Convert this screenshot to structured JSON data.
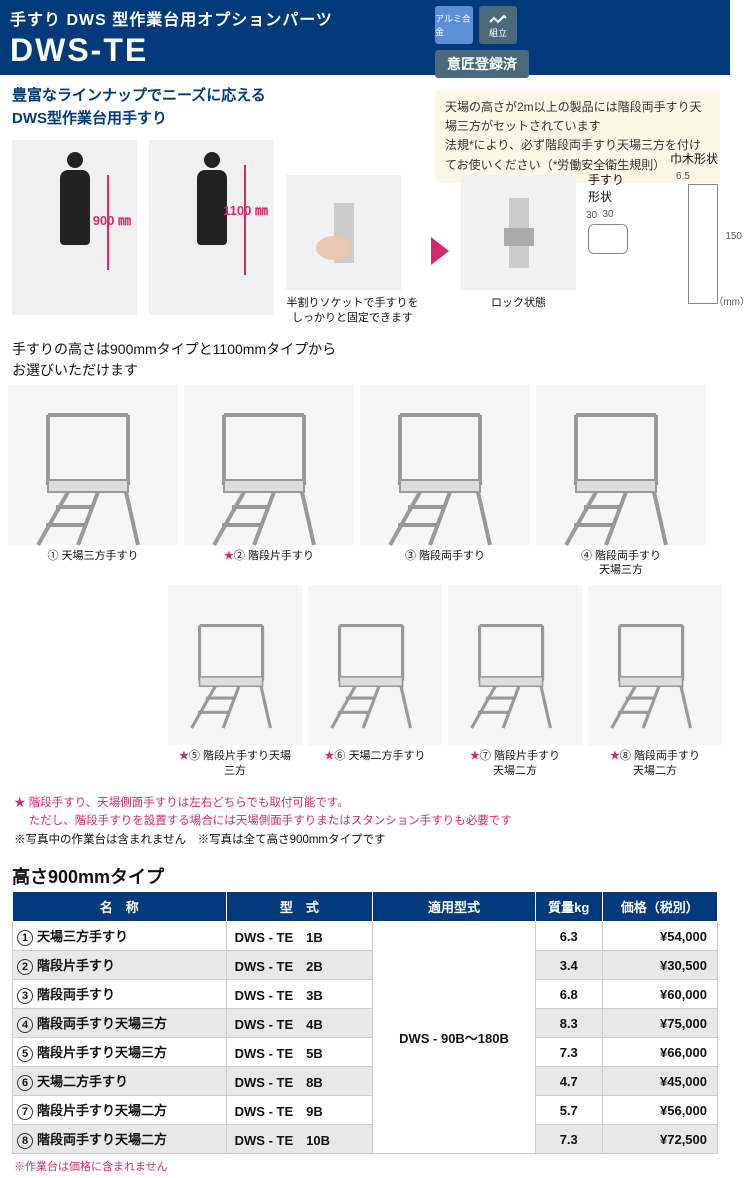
{
  "header": {
    "subtitle": "手すり DWS 型作業台用オプションパーツ",
    "title": "DWS-TE"
  },
  "badges": {
    "alumi": "アルミ合金",
    "kumitate": "組立",
    "isho": "意匠登録済"
  },
  "lead": {
    "line1": "豊富なラインナップでニーズに応える",
    "line2": "DWS型作業台用手すり"
  },
  "notice": "天場の高さが2m以上の製品には階段両手すり天場三方がセットされています\n法規*により、必ず階段両手すり天場三方を付けてお使いください（*労働安全衛生規則）",
  "photos": {
    "dim900": "900 ㎜",
    "dim1100": "1100 ㎜",
    "socket_caption": "半割りソケットで手すりをしっかりと固定できます",
    "lock_caption": "ロック状態"
  },
  "spec": {
    "habaki_label": "巾木形状",
    "habaki_w": "6.5",
    "habaki_h": "150",
    "tesuri_label": "手すり形状",
    "tesuri_w": "30",
    "tesuri_h": "30",
    "unit": "（mm）"
  },
  "selection_note": "手すりの高さは900mmタイプと1100mmタイプから\nお選びいただけます",
  "types": [
    {
      "num": "①",
      "star": false,
      "label": "天場三方手すり"
    },
    {
      "num": "②",
      "star": true,
      "label": "階段片手すり"
    },
    {
      "num": "③",
      "star": false,
      "label": "階段両手すり"
    },
    {
      "num": "④",
      "star": false,
      "label": "階段両手すり\n天場三方"
    },
    {
      "num": "⑤",
      "star": true,
      "label": "階段片手すり天場\n三方"
    },
    {
      "num": "⑥",
      "star": true,
      "label": "天場二方手すり"
    },
    {
      "num": "⑦",
      "star": true,
      "label": "階段片手すり\n天場二方"
    },
    {
      "num": "⑧",
      "star": true,
      "label": "階段両手すり\n天場二方"
    }
  ],
  "footnote": {
    "star_line": "★ 階段手すり、天場側面手すりは左右どちらでも取付可能です。\n　 ただし、階段手すりを設置する場合には天場側面手すりまたはスタンション手すりも必要です",
    "note1": "※写真中の作業台は含まれません",
    "note2": "※写真は全て高さ900mmタイプです"
  },
  "table": {
    "title": "高さ900mmタイプ",
    "headers": [
      "名　称",
      "型　式",
      "適用型式",
      "質量kg",
      "価格（税別）"
    ],
    "compat": "DWS - 90B～180B",
    "rows": [
      {
        "n": "①",
        "name": "天場三方手すり",
        "model": "DWS - TE　1B",
        "mass": "6.3",
        "price": "¥54,000"
      },
      {
        "n": "②",
        "name": "階段片手すり",
        "model": "DWS - TE　2B",
        "mass": "3.4",
        "price": "¥30,500"
      },
      {
        "n": "③",
        "name": "階段両手すり",
        "model": "DWS - TE　3B",
        "mass": "6.8",
        "price": "¥60,000"
      },
      {
        "n": "④",
        "name": "階段両手すり天場三方",
        "model": "DWS - TE　4B",
        "mass": "8.3",
        "price": "¥75,000"
      },
      {
        "n": "⑤",
        "name": "階段片手すり天場三方",
        "model": "DWS - TE　5B",
        "mass": "7.3",
        "price": "¥66,000"
      },
      {
        "n": "⑥",
        "name": "天場二方手すり",
        "model": "DWS - TE　8B",
        "mass": "4.7",
        "price": "¥45,000"
      },
      {
        "n": "⑦",
        "name": "階段片手すり天場二方",
        "model": "DWS - TE　9B",
        "mass": "5.7",
        "price": "¥56,000"
      },
      {
        "n": "⑧",
        "name": "階段両手すり天場二方",
        "model": "DWS - TE　10B",
        "mass": "7.3",
        "price": "¥72,500"
      }
    ],
    "footnote": "※作業台は価格に含まれません"
  },
  "colors": {
    "brand": "#003a7a",
    "accent": "#d62a6e",
    "notice_bg": "#fdf7e8",
    "alt_row": "#e8e8e8"
  }
}
